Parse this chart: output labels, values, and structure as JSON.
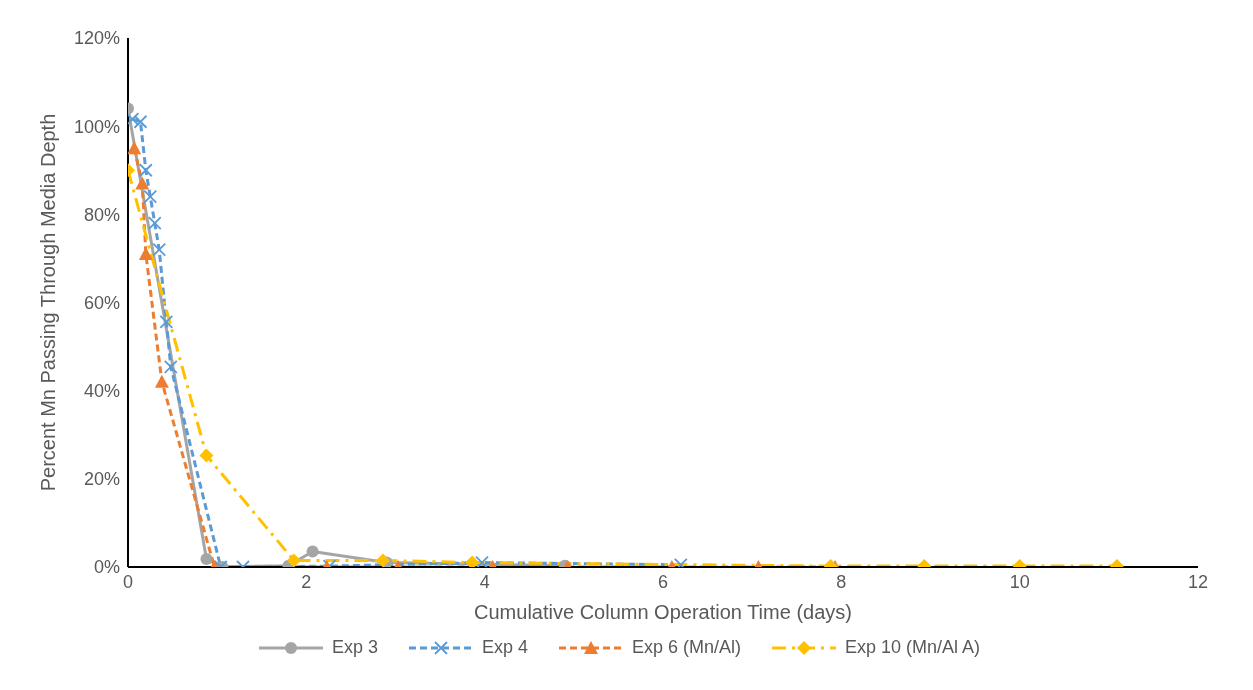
{
  "chart_data": {
    "type": "line",
    "xlabel": "Cumulative Column Operation Time (days)",
    "ylabel": "Percent Mn Passing Through Media Depth",
    "xlim": [
      0,
      12
    ],
    "xticks": [
      0,
      2,
      4,
      6,
      8,
      10,
      12
    ],
    "ylim": [
      0,
      120
    ],
    "yticks": [
      {
        "value": 0,
        "label": "0%"
      },
      {
        "value": 20,
        "label": "20%"
      },
      {
        "value": 40,
        "label": "40%"
      },
      {
        "value": 60,
        "label": "60%"
      },
      {
        "value": 80,
        "label": "80%"
      },
      {
        "value": 100,
        "label": "100%"
      },
      {
        "value": 120,
        "label": "120%"
      }
    ],
    "legend": "bottom",
    "series": [
      {
        "name": "Exp 3",
        "color": "#a5a5a5",
        "marker": "circle",
        "line_style": "solid",
        "x": [
          0,
          0.88,
          1.06,
          1.8,
          2.07,
          2.9,
          4.9
        ],
        "values": [
          104,
          1.8,
          0,
          0.3,
          3.5,
          1,
          0.3
        ]
      },
      {
        "name": "Exp 4",
        "color": "#5b9bd5",
        "marker": "cross",
        "line_style": "dashed",
        "x": [
          0.05,
          0.14,
          0.2,
          0.25,
          0.3,
          0.35,
          0.43,
          0.48,
          1.04,
          1.29,
          2.26,
          3.97,
          6.2
        ],
        "values": [
          101.6,
          101,
          90,
          84,
          78,
          72,
          55.6,
          45.4,
          0,
          0,
          0.2,
          1,
          0.5
        ]
      },
      {
        "name": "Exp 6 (Mn/Al)",
        "color": "#ed7d31",
        "marker": "triangle",
        "line_style": "dashed",
        "x": [
          0.07,
          0.16,
          0.2,
          0.38,
          0.97,
          2.23,
          3.03,
          4.09,
          4.93,
          6.1,
          7.07,
          7.93
        ],
        "values": [
          95,
          87,
          71,
          42,
          0,
          0,
          0,
          0,
          0,
          0,
          0,
          0
        ]
      },
      {
        "name": "Exp 10 (Mn/Al A)",
        "color": "#ffc000",
        "marker": "diamond",
        "line_style": "dashdot",
        "x": [
          0,
          0.88,
          1.86,
          2.86,
          3.86,
          7.88,
          8.93,
          10.0,
          11.09
        ],
        "values": [
          90,
          25.3,
          1.5,
          1.5,
          1,
          0.2,
          0.2,
          0.2,
          0.2
        ]
      }
    ]
  }
}
